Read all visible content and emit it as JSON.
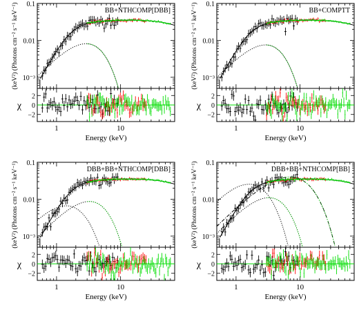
{
  "chart_data": [
    {
      "type": "scatter",
      "panel": "top-left",
      "model_label": "BB+NTHCOMP[DBB]",
      "xlabel": "Energy (keV)",
      "ylabel_top": "(keV²) (Photons cm⁻² s⁻¹ keV⁻¹)",
      "ylabel_bottom": "χ",
      "x_scale": "log",
      "xlim": [
        0.5,
        70
      ],
      "x_ticks": [
        {
          "value": 1,
          "label": "1"
        },
        {
          "value": 10,
          "label": "10"
        }
      ],
      "top_y_scale": "log",
      "top_ylim": [
        0.0005,
        0.1
      ],
      "top_y_ticks": [
        {
          "value": 0.001,
          "label": "10⁻³"
        },
        {
          "value": 0.01,
          "label": "0.01"
        },
        {
          "value": 0.1,
          "label": "0.1"
        }
      ],
      "bottom_ylim": [
        -3.5,
        3.5
      ],
      "bottom_y_ticks": [
        {
          "value": -2,
          "label": "−2"
        },
        {
          "value": 0,
          "label": "0"
        },
        {
          "value": 2,
          "label": "2"
        }
      ],
      "components": [
        {
          "kind": "total",
          "peak": 0.045,
          "soft_cutoff": 0.55
        },
        {
          "kind": "blackbody",
          "norm": 0.007,
          "peak_energy": 4.0,
          "style": "dotted"
        }
      ],
      "series_colors": {
        "soft": "#000000",
        "mid": "#ff0000",
        "hard": "#00dd00"
      }
    },
    {
      "type": "scatter",
      "panel": "top-right",
      "model_label": "BB+COMPTT",
      "xlabel": "Energy (keV)",
      "ylabel_top": "(keV²) (Photons cm⁻² s⁻¹ keV⁻¹)",
      "ylabel_bottom": "χ",
      "x_scale": "log",
      "xlim": [
        0.5,
        70
      ],
      "x_ticks": [
        {
          "value": 1,
          "label": "1"
        },
        {
          "value": 10,
          "label": "10"
        }
      ],
      "top_y_scale": "log",
      "top_ylim": [
        0.0005,
        0.1
      ],
      "top_y_ticks": [
        {
          "value": 0.001,
          "label": "10⁻³"
        },
        {
          "value": 0.01,
          "label": "0.01"
        },
        {
          "value": 0.1,
          "label": "0.1"
        }
      ],
      "bottom_ylim": [
        -3.5,
        3.5
      ],
      "bottom_y_ticks": [
        {
          "value": -2,
          "label": "−2"
        },
        {
          "value": 0,
          "label": "0"
        },
        {
          "value": 2,
          "label": "2"
        }
      ],
      "components": [
        {
          "kind": "total",
          "peak": 0.045,
          "soft_cutoff": 0.55
        },
        {
          "kind": "blackbody",
          "norm": 0.0065,
          "peak_energy": 4.0,
          "style": "dotted"
        }
      ],
      "series_colors": {
        "soft": "#000000",
        "mid": "#ff0000",
        "hard": "#00dd00"
      }
    },
    {
      "type": "scatter",
      "panel": "bottom-left",
      "model_label": "DBB+BB+NTHCOMP[DBB]",
      "xlabel": "Energy (keV)",
      "ylabel_top": "(keV²) (Photons cm⁻² s⁻¹ keV⁻¹)",
      "ylabel_bottom": "χ",
      "x_scale": "log",
      "xlim": [
        0.5,
        70
      ],
      "x_ticks": [
        {
          "value": 1,
          "label": "1"
        },
        {
          "value": 10,
          "label": "10"
        }
      ],
      "top_y_scale": "log",
      "top_ylim": [
        0.0005,
        0.1
      ],
      "top_y_ticks": [
        {
          "value": 0.001,
          "label": "10⁻³"
        },
        {
          "value": 0.01,
          "label": "0.01"
        },
        {
          "value": 0.1,
          "label": "0.1"
        }
      ],
      "bottom_ylim": [
        -3.5,
        3.5
      ],
      "bottom_y_ticks": [
        {
          "value": -2,
          "label": "−2"
        },
        {
          "value": 0,
          "label": "0"
        },
        {
          "value": 2,
          "label": "2"
        }
      ],
      "components": [
        {
          "kind": "total",
          "peak": 0.045,
          "soft_cutoff": 0.55
        },
        {
          "kind": "diskbb",
          "norm": 0.0065,
          "peak_energy": 1.6,
          "style": "dotted"
        },
        {
          "kind": "blackbody",
          "norm": 0.0075,
          "peak_energy": 4.5,
          "style": "dotted"
        }
      ],
      "series_colors": {
        "soft": "#000000",
        "mid": "#ff0000",
        "hard": "#00dd00"
      }
    },
    {
      "type": "scatter",
      "panel": "bottom-right",
      "model_label": "DBB+BB+NTHCOMP[BB]",
      "xlabel": "Energy (keV)",
      "ylabel_top": "(keV²) (Photons cm⁻² s⁻¹ keV⁻¹)",
      "ylabel_bottom": "χ",
      "x_scale": "log",
      "xlim": [
        0.5,
        70
      ],
      "x_ticks": [
        {
          "value": 1,
          "label": "1"
        },
        {
          "value": 10,
          "label": "10"
        }
      ],
      "top_y_scale": "log",
      "top_ylim": [
        0.0005,
        0.1
      ],
      "top_y_ticks": [
        {
          "value": 0.001,
          "label": "10⁻³"
        },
        {
          "value": 0.01,
          "label": "0.01"
        },
        {
          "value": 0.1,
          "label": "0.1"
        }
      ],
      "bottom_ylim": [
        -3.5,
        3.5
      ],
      "bottom_y_ticks": [
        {
          "value": -2,
          "label": "−2"
        },
        {
          "value": 0,
          "label": "0"
        },
        {
          "value": 2,
          "label": "2"
        }
      ],
      "components": [
        {
          "kind": "total",
          "peak": 0.045,
          "soft_cutoff": 0.55
        },
        {
          "kind": "diskbb",
          "norm": 0.025,
          "peak_energy": 1.8,
          "style": "dotted"
        },
        {
          "kind": "blackbody",
          "norm": 0.0095,
          "peak_energy": 4.5,
          "style": "dotted"
        },
        {
          "kind": "comptonized",
          "norm": 0.04,
          "peak_energy": 7.0,
          "style": "dashdot"
        }
      ],
      "series_colors": {
        "soft": "#000000",
        "mid": "#ff0000",
        "hard": "#00dd00"
      }
    }
  ]
}
